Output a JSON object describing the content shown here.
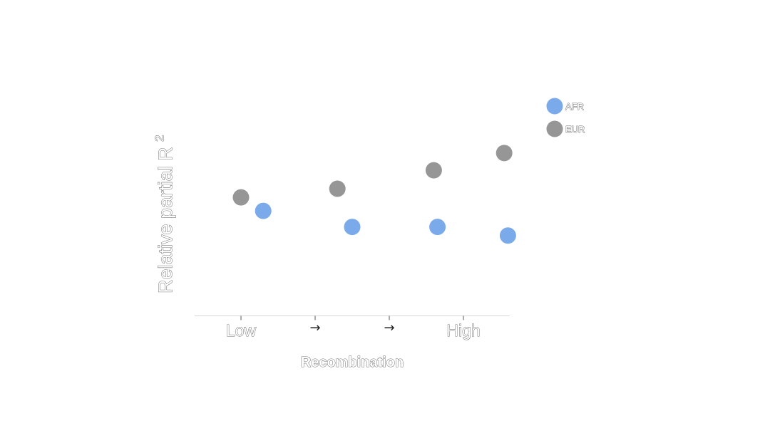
{
  "chart_data": {
    "type": "scatter",
    "title": "",
    "xlabel": "Recombination",
    "ylabel": "Relative partial R",
    "ylabel_superscript": "2",
    "x_ticks": [
      {
        "position": 1,
        "label": "Low"
      },
      {
        "position": 2,
        "label": "→"
      },
      {
        "position": 3,
        "label": "→"
      },
      {
        "position": 4,
        "label": "High"
      }
    ],
    "xlim": [
      0.4,
      4.6
    ],
    "ylim": [
      0.0,
      1.6
    ],
    "grid": false,
    "legend_position": "top-right",
    "series": [
      {
        "name": "AFR",
        "color": "#7aaaea",
        "x": [
          1.3,
          2.5,
          3.65,
          4.6
        ],
        "y": [
          0.84,
          0.71,
          0.71,
          0.64
        ]
      },
      {
        "name": "EUR",
        "color": "#969696",
        "x": [
          1.0,
          2.3,
          3.6,
          4.55
        ],
        "y": [
          0.95,
          1.02,
          1.17,
          1.31
        ]
      }
    ]
  }
}
